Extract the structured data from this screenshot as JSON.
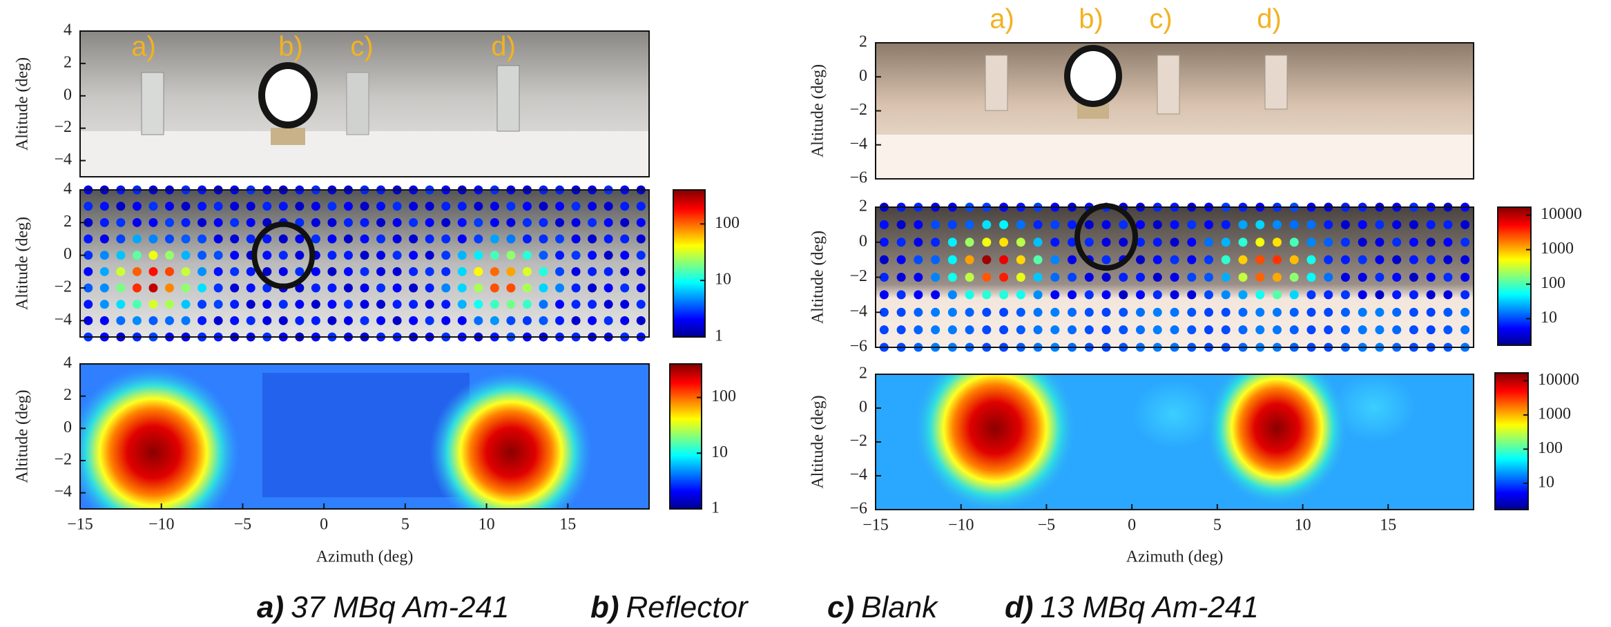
{
  "chart_data": [
    {
      "type": "image",
      "ylabel": "Altitude (deg)",
      "xlim": [
        -15,
        20
      ],
      "ylim": [
        -5,
        4
      ],
      "yticks": [
        {
          "value": -4,
          "label": "−4"
        },
        {
          "value": -2,
          "label": "−2"
        },
        0,
        2,
        4
      ]
    },
    {
      "type": "dots",
      "ylabel": "Altitude (deg)",
      "xlim": [
        -15,
        20
      ],
      "ylim": [
        -5,
        4
      ],
      "yticks": [
        {
          "value": -4,
          "label": "−4"
        },
        {
          "value": -2,
          "label": "−2"
        },
        0,
        2,
        4
      ],
      "colorbar": {
        "log": true,
        "lim": [
          1,
          400
        ],
        "ticks": [
          1,
          10,
          100
        ]
      }
    },
    {
      "type": "heatmap",
      "ylabel": "Altitude (deg)",
      "xlabel": "Azimuth (deg)",
      "xlim": [
        -15,
        20
      ],
      "ylim": [
        -5,
        4
      ],
      "yticks": [
        {
          "value": -4,
          "label": "−4"
        },
        {
          "value": -2,
          "label": "−2"
        },
        0,
        2,
        4
      ],
      "xticks": [
        {
          "value": -15,
          "label": "−15"
        },
        {
          "value": -10,
          "label": "−10"
        },
        {
          "value": -5,
          "label": "−5"
        },
        0,
        5,
        10,
        15
      ],
      "colorbar": {
        "log": true,
        "lim": [
          1,
          400
        ],
        "ticks": [
          1,
          10,
          100
        ]
      }
    },
    {
      "type": "image",
      "ylabel": "Altitude (deg)",
      "xlim": [
        -15,
        20
      ],
      "ylim": [
        -6,
        2
      ],
      "yticks": [
        {
          "value": -6,
          "label": "−6"
        },
        {
          "value": -4,
          "label": "−4"
        },
        {
          "value": -2,
          "label": "−2"
        },
        0,
        2
      ]
    },
    {
      "type": "dots",
      "ylabel": "Altitude (deg)",
      "xlim": [
        -15,
        20
      ],
      "ylim": [
        -6,
        2
      ],
      "yticks": [
        {
          "value": -6,
          "label": "−6"
        },
        {
          "value": -4,
          "label": "−4"
        },
        {
          "value": -2,
          "label": "−2"
        },
        0,
        2
      ],
      "colorbar": {
        "log": true,
        "lim": [
          1.7,
          17000
        ],
        "ticks": [
          10,
          100,
          1000,
          10000
        ]
      }
    },
    {
      "type": "heatmap",
      "ylabel": "Altitude (deg)",
      "xlabel": "Azimuth (deg)",
      "xlim": [
        -15,
        20
      ],
      "ylim": [
        -6,
        2
      ],
      "yticks": [
        {
          "value": -6,
          "label": "−6"
        },
        {
          "value": -4,
          "label": "−4"
        },
        {
          "value": -2,
          "label": "−2"
        },
        0,
        2
      ],
      "xticks": [
        {
          "value": -15,
          "label": "−15"
        },
        {
          "value": -10,
          "label": "−10"
        },
        {
          "value": -5,
          "label": "−5"
        },
        0,
        5,
        10,
        15
      ],
      "colorbar": {
        "log": true,
        "lim": [
          1.7,
          17000
        ],
        "ticks": [
          10,
          100,
          1000,
          10000
        ]
      }
    }
  ],
  "legend": {
    "items": [
      {
        "key": "a)",
        "text": "37 MBq Am-241"
      },
      {
        "key": "b)",
        "text": "Reflector"
      },
      {
        "key": "c)",
        "text": "Blank"
      },
      {
        "key": "d)",
        "text": "13 MBq Am-241"
      }
    ]
  }
}
